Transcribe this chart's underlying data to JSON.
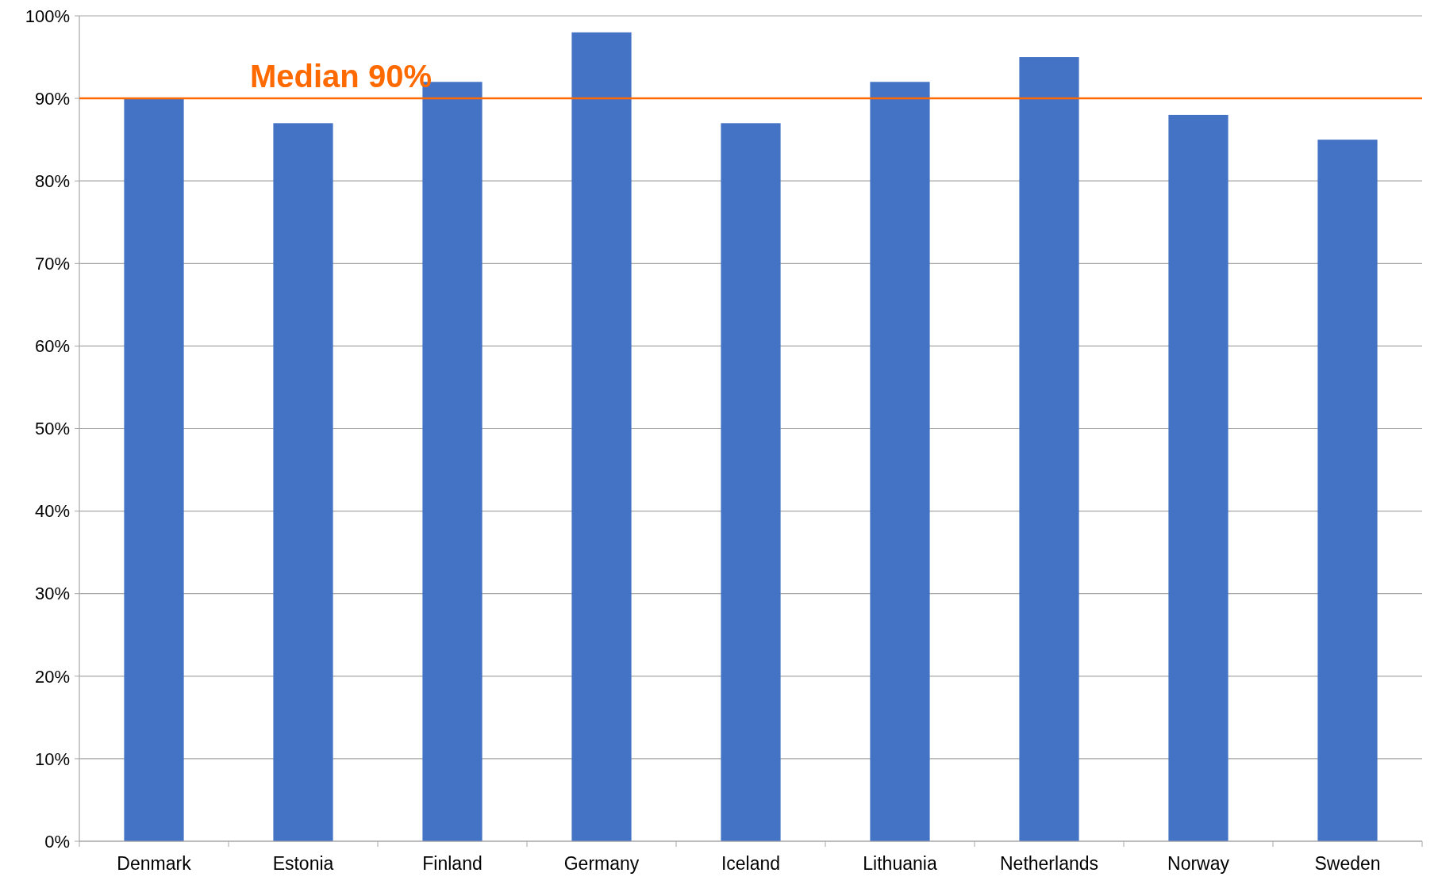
{
  "chart_data": {
    "type": "bar",
    "categories": [
      "Denmark",
      "Estonia",
      "Finland",
      "Germany",
      "Iceland",
      "Lithuania",
      "Netherlands",
      "Norway",
      "Sweden"
    ],
    "values": [
      90,
      87,
      92,
      98,
      87,
      92,
      95,
      88,
      85
    ],
    "color": "#4472c4",
    "ylim": [
      0,
      100
    ],
    "yticks": [
      {
        "value": 0,
        "label": "0%"
      },
      {
        "value": 10,
        "label": "10%"
      },
      {
        "value": 20,
        "label": "20%"
      },
      {
        "value": 30,
        "label": "30%"
      },
      {
        "value": 40,
        "label": "40%"
      },
      {
        "value": 50,
        "label": "50%"
      },
      {
        "value": 60,
        "label": "60%"
      },
      {
        "value": 70,
        "label": "70%"
      },
      {
        "value": 80,
        "label": "80%"
      },
      {
        "value": 90,
        "label": "90%"
      },
      {
        "value": 100,
        "label": "100%"
      }
    ],
    "grid": "y",
    "ref_lines": [
      {
        "axis": "y",
        "value": 90,
        "label": "Median 90%",
        "color": "#ff6a00"
      }
    ]
  }
}
